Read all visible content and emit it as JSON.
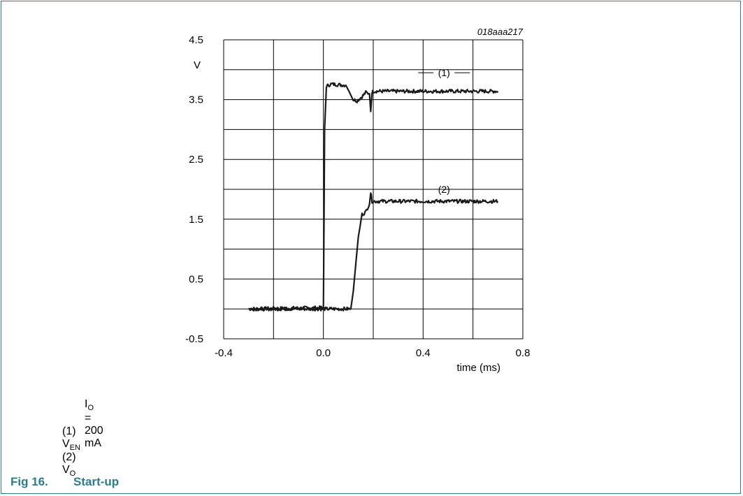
{
  "chart_data": {
    "type": "line",
    "code": "018aaa217",
    "ylabel": "V",
    "xlabel": "time (ms)",
    "xlim": [
      -0.4,
      0.8
    ],
    "ylim": [
      -0.5,
      4.5
    ],
    "xticks": [
      -0.4,
      0.0,
      0.4,
      0.8
    ],
    "xtick_labels": [
      "-0.4",
      "0.0",
      "0.4",
      "0.8"
    ],
    "yticks": [
      -0.5,
      0.5,
      1.5,
      2.5,
      3.5,
      4.5
    ],
    "ytick_labels": [
      "-0.5",
      "0.5",
      "1.5",
      "2.5",
      "3.5",
      "4.5"
    ],
    "grid": true,
    "series": [
      {
        "name": "(1)",
        "x": [
          -0.3,
          0.0,
          0.005,
          0.012,
          0.03,
          0.09,
          0.12,
          0.135,
          0.155,
          0.17,
          0.185,
          0.19,
          0.195,
          0.2,
          0.7
        ],
        "y": [
          0.0,
          0.02,
          3.0,
          3.72,
          3.76,
          3.74,
          3.5,
          3.48,
          3.55,
          3.62,
          3.6,
          3.3,
          3.62,
          3.64,
          3.64
        ]
      },
      {
        "name": "(2)",
        "x": [
          -0.3,
          0.11,
          0.12,
          0.14,
          0.155,
          0.17,
          0.18,
          0.185,
          0.19,
          0.195,
          0.2,
          0.7
        ],
        "y": [
          0.0,
          0.0,
          0.3,
          1.2,
          1.58,
          1.62,
          1.72,
          1.75,
          1.95,
          1.8,
          1.8,
          1.8
        ]
      }
    ]
  },
  "notes": {
    "condition": {
      "sym": "I",
      "sub": "O",
      "rest": " = 200 mA"
    },
    "legend": [
      {
        "num": "(1)",
        "sym": "V",
        "sub": "EN"
      },
      {
        "num": "(2)",
        "sym": "V",
        "sub": "O"
      }
    ]
  },
  "caption": {
    "number": "Fig 16.",
    "title": "Start-up"
  },
  "colors": {
    "accent": "#2a7d8c",
    "trace": "#1a1a1a",
    "grid": "#000000"
  }
}
